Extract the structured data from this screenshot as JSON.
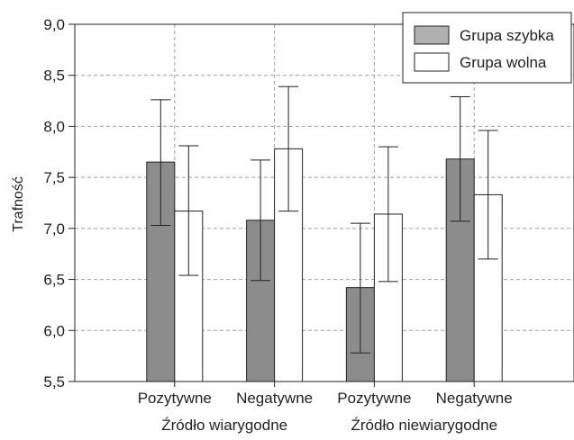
{
  "chart_data": {
    "type": "bar",
    "title": "",
    "ylabel": "Trafność",
    "xlabel": "",
    "ylim": [
      5.5,
      9.0
    ],
    "yticks": [
      "5,5",
      "6,0",
      "6,5",
      "7,0",
      "7,5",
      "8,0",
      "8,5",
      "9,0"
    ],
    "grid": true,
    "legend_position": "top-right",
    "categories": [
      "Pozytywne",
      "Negatywne",
      "Pozytywne",
      "Negatywne"
    ],
    "groups": [
      "Źródło wiarygodne",
      "Źródło niewiarygodne"
    ],
    "series": [
      {
        "name": "Grupa szybka",
        "color": "#8c8c8c",
        "values": [
          7.65,
          7.08,
          6.42,
          7.68
        ],
        "error_low": [
          7.03,
          6.49,
          5.78,
          7.07
        ],
        "error_high": [
          8.26,
          7.67,
          7.05,
          8.29
        ]
      },
      {
        "name": "Grupa wolna",
        "color": "#ffffff",
        "values": [
          7.17,
          7.78,
          7.14,
          7.33
        ],
        "error_low": [
          6.54,
          7.17,
          6.48,
          6.7
        ],
        "error_high": [
          7.81,
          8.39,
          7.8,
          7.96
        ]
      }
    ]
  }
}
